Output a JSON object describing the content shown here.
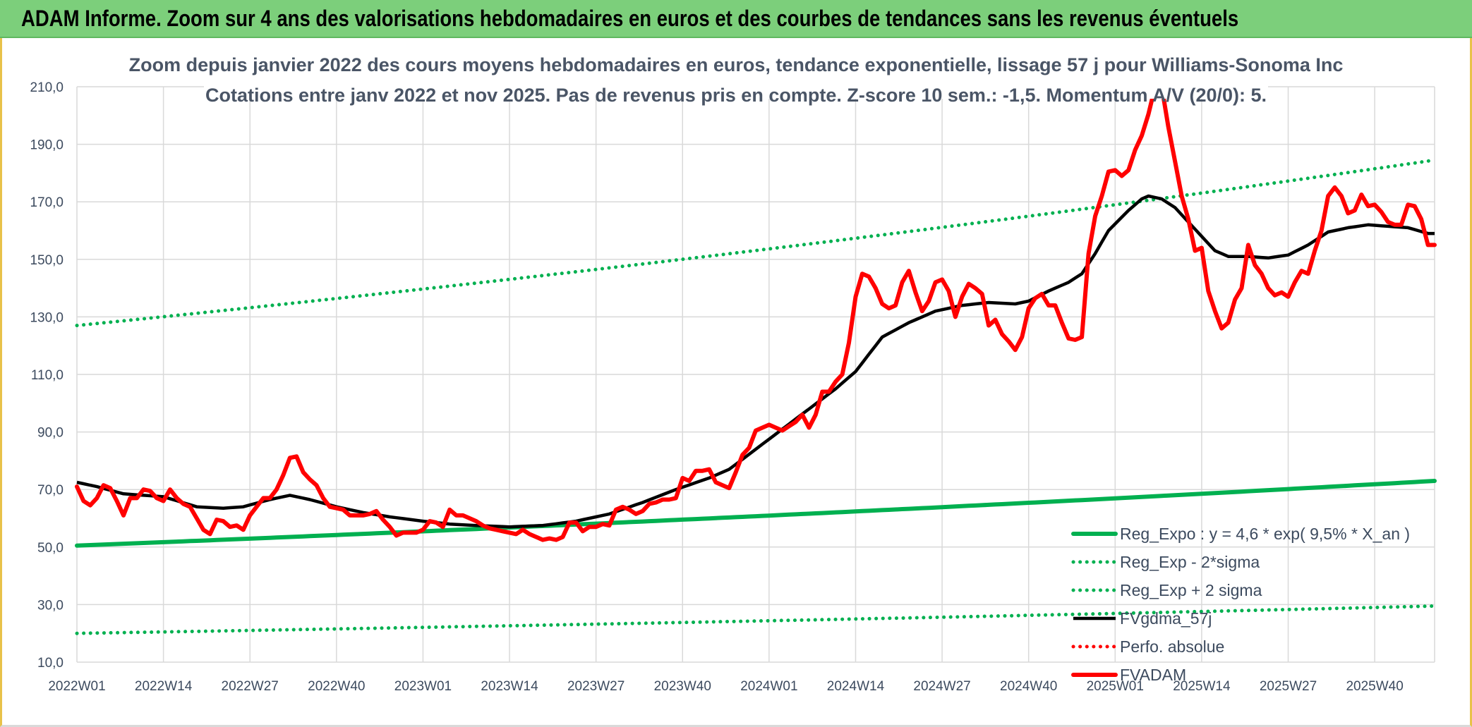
{
  "banner": {
    "title": "ADAM Informe. Zoom sur 4 ans des valorisations hebdomadaires en euros et des courbes de tendances sans les revenus éventuels"
  },
  "colors": {
    "banner": "#7ccf7b",
    "trend": "#00b050",
    "price": "#ff0000",
    "smooth": "#000000",
    "grid": "#d9d9d9"
  },
  "chart_data": {
    "type": "line",
    "title": "Zoom depuis janvier 2022 des cours moyens hebdomadaires en euros, tendance exponentielle, lissage 57 j pour Williams-Sonoma Inc",
    "subtitle": "Cotations entre janv 2022 et nov 2025. Pas de revenus pris en compte. Z-score 10 sem.: -1,5. Momentum A/V (20/0): 5.",
    "ylim": [
      10,
      210
    ],
    "ytick_labels": [
      "10,0",
      "30,0",
      "50,0",
      "70,0",
      "90,0",
      "110,0",
      "130,0",
      "150,0",
      "170,0",
      "190,0",
      "210,0"
    ],
    "xtick_labels": [
      "2022W01",
      "2022W14",
      "2022W27",
      "2022W40",
      "2023W01",
      "2023W14",
      "2023W27",
      "2023W40",
      "2024W01",
      "2024W14",
      "2024W27",
      "2024W40",
      "2025W01",
      "2025W14",
      "2025W27",
      "2025W40"
    ],
    "xtick_index": [
      0,
      13,
      26,
      39,
      52,
      65,
      78,
      91,
      104,
      117,
      130,
      143,
      156,
      169,
      182,
      195
    ],
    "grid": "vertical-and-horizontal",
    "legend_position": "bottom-right",
    "series": [
      {
        "name": "Reg_Expo : y = 4,6 * exp( 9,5% * X_an )",
        "style": "solid-thick",
        "color": "#00b050",
        "endpoints": [
          50.5,
          73
        ]
      },
      {
        "name": "Reg_Exp - 2*sigma",
        "style": "dotted",
        "color": "#00b050",
        "endpoints": [
          20,
          29.5
        ]
      },
      {
        "name": "Reg_Exp + 2 sigma",
        "style": "dotted",
        "color": "#00b050",
        "endpoints": [
          127,
          184.5
        ]
      },
      {
        "name": "FVgdma_57j",
        "style": "solid",
        "color": "#000000",
        "keypoints": [
          [
            0,
            72.5
          ],
          [
            3,
            71
          ],
          [
            7,
            68.5
          ],
          [
            13,
            67.5
          ],
          [
            18,
            64
          ],
          [
            22,
            63.5
          ],
          [
            25,
            64
          ],
          [
            29,
            66.5
          ],
          [
            32,
            68
          ],
          [
            35,
            66.5
          ],
          [
            39,
            64
          ],
          [
            43,
            62
          ],
          [
            47,
            60.5
          ],
          [
            52,
            59
          ],
          [
            56,
            58
          ],
          [
            60,
            57.5
          ],
          [
            65,
            57
          ],
          [
            70,
            57.5
          ],
          [
            75,
            59
          ],
          [
            80,
            61.5
          ],
          [
            85,
            65.5
          ],
          [
            90,
            70
          ],
          [
            95,
            74
          ],
          [
            98,
            77
          ],
          [
            102,
            84
          ],
          [
            106,
            91
          ],
          [
            110,
            98
          ],
          [
            114,
            105
          ],
          [
            117,
            111
          ],
          [
            121,
            123
          ],
          [
            125,
            128
          ],
          [
            129,
            132
          ],
          [
            133,
            134
          ],
          [
            137,
            135
          ],
          [
            141,
            134.5
          ],
          [
            143,
            135.5
          ],
          [
            146,
            139
          ],
          [
            149,
            142
          ],
          [
            151,
            145
          ],
          [
            153,
            152
          ],
          [
            155,
            160
          ],
          [
            158,
            167
          ],
          [
            160,
            171
          ],
          [
            161,
            172
          ],
          [
            163,
            171
          ],
          [
            165,
            168
          ],
          [
            167,
            163
          ],
          [
            169,
            158
          ],
          [
            171,
            153
          ],
          [
            173,
            151
          ],
          [
            176,
            151
          ],
          [
            179,
            150.5
          ],
          [
            182,
            151.5
          ],
          [
            185,
            155
          ],
          [
            188,
            159.5
          ],
          [
            191,
            161
          ],
          [
            194,
            162
          ],
          [
            197,
            161.5
          ],
          [
            200,
            161
          ],
          [
            203,
            159
          ]
        ]
      },
      {
        "name": "Perfo. absolue",
        "style": "dotted",
        "color": "#ff0000",
        "values": []
      },
      {
        "name": "FVADAM",
        "style": "solid-thick",
        "color": "#ff0000",
        "keypoints": [
          [
            0,
            71
          ],
          [
            1,
            66
          ],
          [
            2,
            64.5
          ],
          [
            3,
            67
          ],
          [
            4,
            71.5
          ],
          [
            5,
            70.5
          ],
          [
            6,
            66
          ],
          [
            7,
            61
          ],
          [
            8,
            67
          ],
          [
            9,
            67
          ],
          [
            10,
            70
          ],
          [
            11,
            69.5
          ],
          [
            12,
            67
          ],
          [
            13,
            66
          ],
          [
            14,
            70
          ],
          [
            15,
            67
          ],
          [
            16,
            65
          ],
          [
            17,
            64
          ],
          [
            18,
            60
          ],
          [
            19,
            56
          ],
          [
            20,
            54.5
          ],
          [
            21,
            59.5
          ],
          [
            22,
            59
          ],
          [
            23,
            57
          ],
          [
            24,
            57.5
          ],
          [
            25,
            56
          ],
          [
            26,
            61
          ],
          [
            27,
            64
          ],
          [
            28,
            67
          ],
          [
            29,
            67
          ],
          [
            30,
            70
          ],
          [
            31,
            75
          ],
          [
            32,
            81
          ],
          [
            33,
            81.5
          ],
          [
            34,
            76
          ],
          [
            35,
            73.5
          ],
          [
            36,
            71.5
          ],
          [
            37,
            67
          ],
          [
            38,
            64
          ],
          [
            39,
            63.5
          ],
          [
            40,
            63
          ],
          [
            41,
            61
          ],
          [
            42,
            61
          ],
          [
            43,
            61
          ],
          [
            44,
            61.5
          ],
          [
            45,
            62.5
          ],
          [
            46,
            59.5
          ],
          [
            47,
            57
          ],
          [
            48,
            54
          ],
          [
            49,
            55
          ],
          [
            50,
            55
          ],
          [
            51,
            55
          ],
          [
            52,
            56
          ],
          [
            53,
            59
          ],
          [
            54,
            58.5
          ],
          [
            55,
            57
          ],
          [
            56,
            63
          ],
          [
            57,
            61
          ],
          [
            58,
            61
          ],
          [
            59,
            60
          ],
          [
            60,
            59
          ],
          [
            61,
            57.5
          ],
          [
            62,
            56.5
          ],
          [
            63,
            56
          ],
          [
            64,
            55.5
          ],
          [
            65,
            55
          ],
          [
            66,
            54.5
          ],
          [
            67,
            56
          ],
          [
            68,
            54.5
          ],
          [
            69,
            53.5
          ],
          [
            70,
            52.5
          ],
          [
            71,
            53
          ],
          [
            72,
            52.5
          ],
          [
            73,
            53.5
          ],
          [
            74,
            58.5
          ],
          [
            75,
            58.5
          ],
          [
            76,
            55.5
          ],
          [
            77,
            57
          ],
          [
            78,
            57
          ],
          [
            79,
            58
          ],
          [
            80,
            57.5
          ],
          [
            81,
            63
          ],
          [
            82,
            64
          ],
          [
            83,
            63
          ],
          [
            84,
            61.5
          ],
          [
            85,
            62.5
          ],
          [
            86,
            65
          ],
          [
            87,
            65.5
          ],
          [
            88,
            66.5
          ],
          [
            89,
            66.5
          ],
          [
            90,
            67
          ],
          [
            91,
            74
          ],
          [
            92,
            73
          ],
          [
            93,
            76.5
          ],
          [
            94,
            76.5
          ],
          [
            95,
            77
          ],
          [
            96,
            72.5
          ],
          [
            97,
            71.5
          ],
          [
            98,
            70.5
          ],
          [
            99,
            76
          ],
          [
            100,
            82
          ],
          [
            101,
            84.5
          ],
          [
            102,
            90.5
          ],
          [
            103,
            91.5
          ],
          [
            104,
            92.5
          ],
          [
            105,
            91.5
          ],
          [
            106,
            90.5
          ],
          [
            107,
            92
          ],
          [
            108,
            93.5
          ],
          [
            109,
            96
          ],
          [
            110,
            91.5
          ],
          [
            111,
            96
          ],
          [
            112,
            104
          ],
          [
            113,
            104
          ],
          [
            114,
            107.5
          ],
          [
            115,
            110
          ],
          [
            116,
            121
          ],
          [
            117,
            137
          ],
          [
            118,
            145
          ],
          [
            119,
            144
          ],
          [
            120,
            140
          ],
          [
            121,
            134.5
          ],
          [
            122,
            133
          ],
          [
            123,
            134
          ],
          [
            124,
            142
          ],
          [
            125,
            146
          ],
          [
            126,
            138.5
          ],
          [
            127,
            132
          ],
          [
            128,
            135.5
          ],
          [
            129,
            142
          ],
          [
            130,
            143
          ],
          [
            131,
            139
          ],
          [
            132,
            130
          ],
          [
            133,
            137
          ],
          [
            134,
            141.5
          ],
          [
            135,
            140
          ],
          [
            136,
            138
          ],
          [
            137,
            127
          ],
          [
            138,
            129
          ],
          [
            139,
            124
          ],
          [
            140,
            121.5
          ],
          [
            141,
            118.5
          ],
          [
            142,
            123
          ],
          [
            143,
            133
          ],
          [
            144,
            136.5
          ],
          [
            145,
            138
          ],
          [
            146,
            134
          ],
          [
            147,
            134
          ],
          [
            148,
            128
          ],
          [
            149,
            122.5
          ],
          [
            150,
            122
          ],
          [
            151,
            123
          ],
          [
            152,
            152
          ],
          [
            153,
            165
          ],
          [
            154,
            172
          ],
          [
            155,
            180.5
          ],
          [
            156,
            181
          ],
          [
            157,
            179
          ],
          [
            158,
            181
          ],
          [
            159,
            188
          ],
          [
            160,
            193
          ],
          [
            161,
            200.5
          ],
          [
            162,
            210
          ],
          [
            163,
            210
          ],
          [
            164,
            196
          ],
          [
            165,
            184
          ],
          [
            166,
            172
          ],
          [
            167,
            164
          ],
          [
            168,
            153
          ],
          [
            169,
            154
          ],
          [
            170,
            139
          ],
          [
            171,
            132
          ],
          [
            172,
            126
          ],
          [
            173,
            128
          ],
          [
            174,
            136
          ],
          [
            175,
            140
          ],
          [
            176,
            155
          ],
          [
            177,
            148
          ],
          [
            178,
            145
          ],
          [
            179,
            140
          ],
          [
            180,
            137.5
          ],
          [
            181,
            138.5
          ],
          [
            182,
            137
          ],
          [
            183,
            142
          ],
          [
            184,
            146
          ],
          [
            185,
            145
          ],
          [
            186,
            153
          ],
          [
            187,
            160
          ],
          [
            188,
            172
          ],
          [
            189,
            175
          ],
          [
            190,
            172
          ],
          [
            191,
            166
          ],
          [
            192,
            167
          ],
          [
            193,
            172.5
          ],
          [
            194,
            168.5
          ],
          [
            195,
            169
          ],
          [
            196,
            166.5
          ],
          [
            197,
            163
          ],
          [
            198,
            162
          ],
          [
            199,
            162
          ],
          [
            200,
            169
          ],
          [
            201,
            168.5
          ],
          [
            202,
            164
          ],
          [
            203,
            155
          ],
          [
            204,
            155
          ]
        ]
      }
    ]
  }
}
